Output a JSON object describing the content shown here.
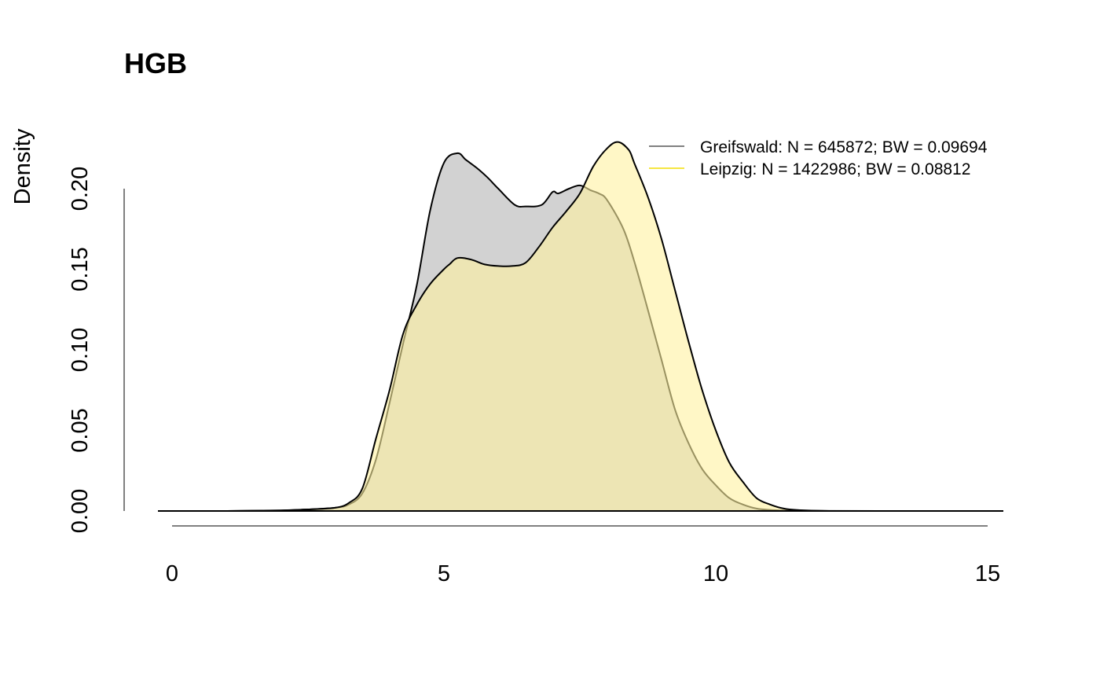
{
  "chart_data": {
    "type": "area",
    "title": "HGB",
    "xlabel": "",
    "ylabel": "Density",
    "xlim": [
      0,
      15
    ],
    "ylim": [
      0,
      0.2
    ],
    "x_ticks": [
      "0",
      "5",
      "10",
      "15"
    ],
    "y_ticks": [
      "0.00",
      "0.05",
      "0.10",
      "0.15",
      "0.20"
    ],
    "grid": false,
    "legend_position": "top-right",
    "legend": [
      {
        "label": "Greifswald: N = 645872; BW = 0.09694",
        "color": "#808080"
      },
      {
        "label": "Leipzig: N = 1422986; BW = 0.08812",
        "color": "#f5e642"
      }
    ],
    "series": [
      {
        "name": "Greifswald",
        "fill": "#bfbfbf",
        "x": [
          -0.25,
          1.0,
          2.0,
          2.5,
          3.0,
          3.25,
          3.5,
          3.75,
          4.0,
          4.25,
          4.5,
          4.75,
          5.0,
          5.25,
          5.4,
          5.6,
          5.8,
          6.0,
          6.3,
          6.5,
          6.8,
          7.0,
          7.1,
          7.3,
          7.5,
          7.7,
          7.85,
          8.0,
          8.3,
          8.5,
          8.75,
          9.0,
          9.25,
          9.5,
          9.75,
          10.0,
          10.25,
          10.5,
          10.75,
          11.0,
          11.25,
          11.5,
          12.0,
          13.0,
          15.25
        ],
        "y": [
          0.0,
          0.0,
          0.0004,
          0.001,
          0.002,
          0.004,
          0.011,
          0.032,
          0.067,
          0.104,
          0.14,
          0.187,
          0.216,
          0.222,
          0.218,
          0.213,
          0.207,
          0.2,
          0.19,
          0.189,
          0.19,
          0.198,
          0.197,
          0.2,
          0.202,
          0.199,
          0.197,
          0.193,
          0.175,
          0.155,
          0.125,
          0.094,
          0.063,
          0.042,
          0.026,
          0.016,
          0.008,
          0.004,
          0.0015,
          0.0007,
          0.0003,
          0.0001,
          0.0,
          0.0,
          0.0
        ]
      },
      {
        "name": "Leipzig",
        "fill": "#fff2a0",
        "x": [
          -0.25,
          1.0,
          2.0,
          2.5,
          3.0,
          3.25,
          3.5,
          3.75,
          4.0,
          4.25,
          4.5,
          4.75,
          5.0,
          5.1,
          5.25,
          5.5,
          5.75,
          6.0,
          6.25,
          6.5,
          6.75,
          7.0,
          7.25,
          7.5,
          7.75,
          8.0,
          8.2,
          8.4,
          8.5,
          8.75,
          9.0,
          9.25,
          9.5,
          9.75,
          10.0,
          10.25,
          10.5,
          10.75,
          11.0,
          11.25,
          11.5,
          12.0,
          13.0,
          15.25
        ],
        "y": [
          0.0,
          0.0,
          0.0003,
          0.001,
          0.002,
          0.005,
          0.014,
          0.045,
          0.075,
          0.11,
          0.128,
          0.141,
          0.15,
          0.153,
          0.157,
          0.156,
          0.153,
          0.152,
          0.152,
          0.154,
          0.164,
          0.176,
          0.186,
          0.197,
          0.214,
          0.225,
          0.229,
          0.224,
          0.216,
          0.195,
          0.169,
          0.137,
          0.105,
          0.075,
          0.05,
          0.03,
          0.018,
          0.008,
          0.004,
          0.0015,
          0.0006,
          0.0001,
          0.0,
          0.0
        ]
      }
    ]
  }
}
